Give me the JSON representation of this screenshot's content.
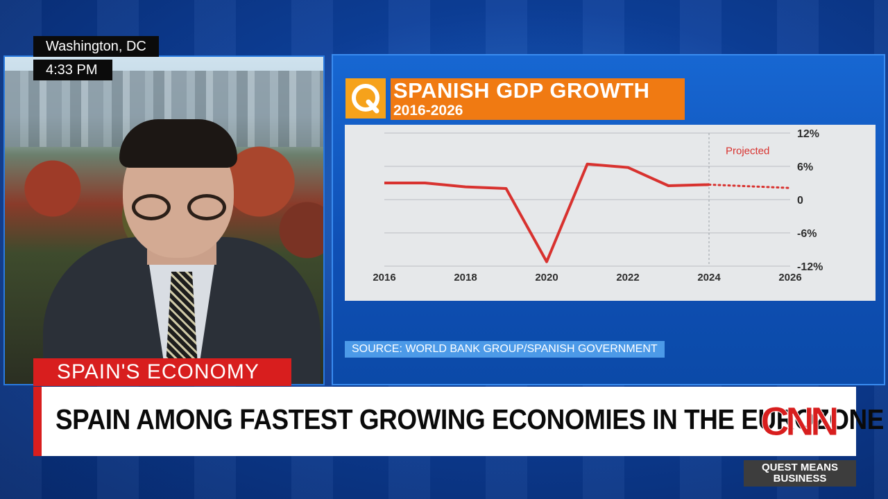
{
  "location": {
    "city": "Washington, DC",
    "time": "4:33 PM"
  },
  "graphic": {
    "logo_letter": "Q",
    "source": "SOURCE: WORLD BANK GROUP/SPANISH GOVERNMENT",
    "colors": {
      "accent_orange": "#f07a12",
      "logo_orange": "#f6a21b",
      "line_red": "#d8322f"
    }
  },
  "lower_third": {
    "topic": "SPAIN'S ECONOMY",
    "headline": "SPAIN AMONG FASTEST GROWING ECONOMIES IN THE EUROZONE",
    "network": "CNN",
    "show": [
      "QUEST MEANS",
      "BUSINESS"
    ]
  },
  "chart_data": {
    "type": "line",
    "title": "SPANISH GDP GROWTH",
    "subtitle": "2016-2026",
    "xlim": [
      2016,
      2026
    ],
    "ylim": [
      -12,
      12
    ],
    "x_ticks": [
      "2016",
      "2018",
      "2020",
      "2022",
      "2024",
      "2026"
    ],
    "y_ticks": [
      "12%",
      "6%",
      "0",
      "-6%",
      "-12%"
    ],
    "y_tick_values": [
      12,
      6,
      0,
      -6,
      -12
    ],
    "grid": true,
    "series": [
      {
        "x": [
          2016,
          2017,
          2018,
          2019,
          2020,
          2021,
          2022,
          2023,
          2024
        ],
        "values": [
          3.0,
          3.0,
          2.3,
          2.0,
          -11.2,
          6.4,
          5.8,
          2.5,
          2.7
        ]
      },
      {
        "name": "Projected",
        "style": "dotted",
        "x": [
          2024,
          2025,
          2026
        ],
        "values": [
          2.7,
          2.4,
          2.1
        ]
      }
    ],
    "divider_x": 2024,
    "annotations": [
      {
        "text": "Projected"
      }
    ]
  }
}
